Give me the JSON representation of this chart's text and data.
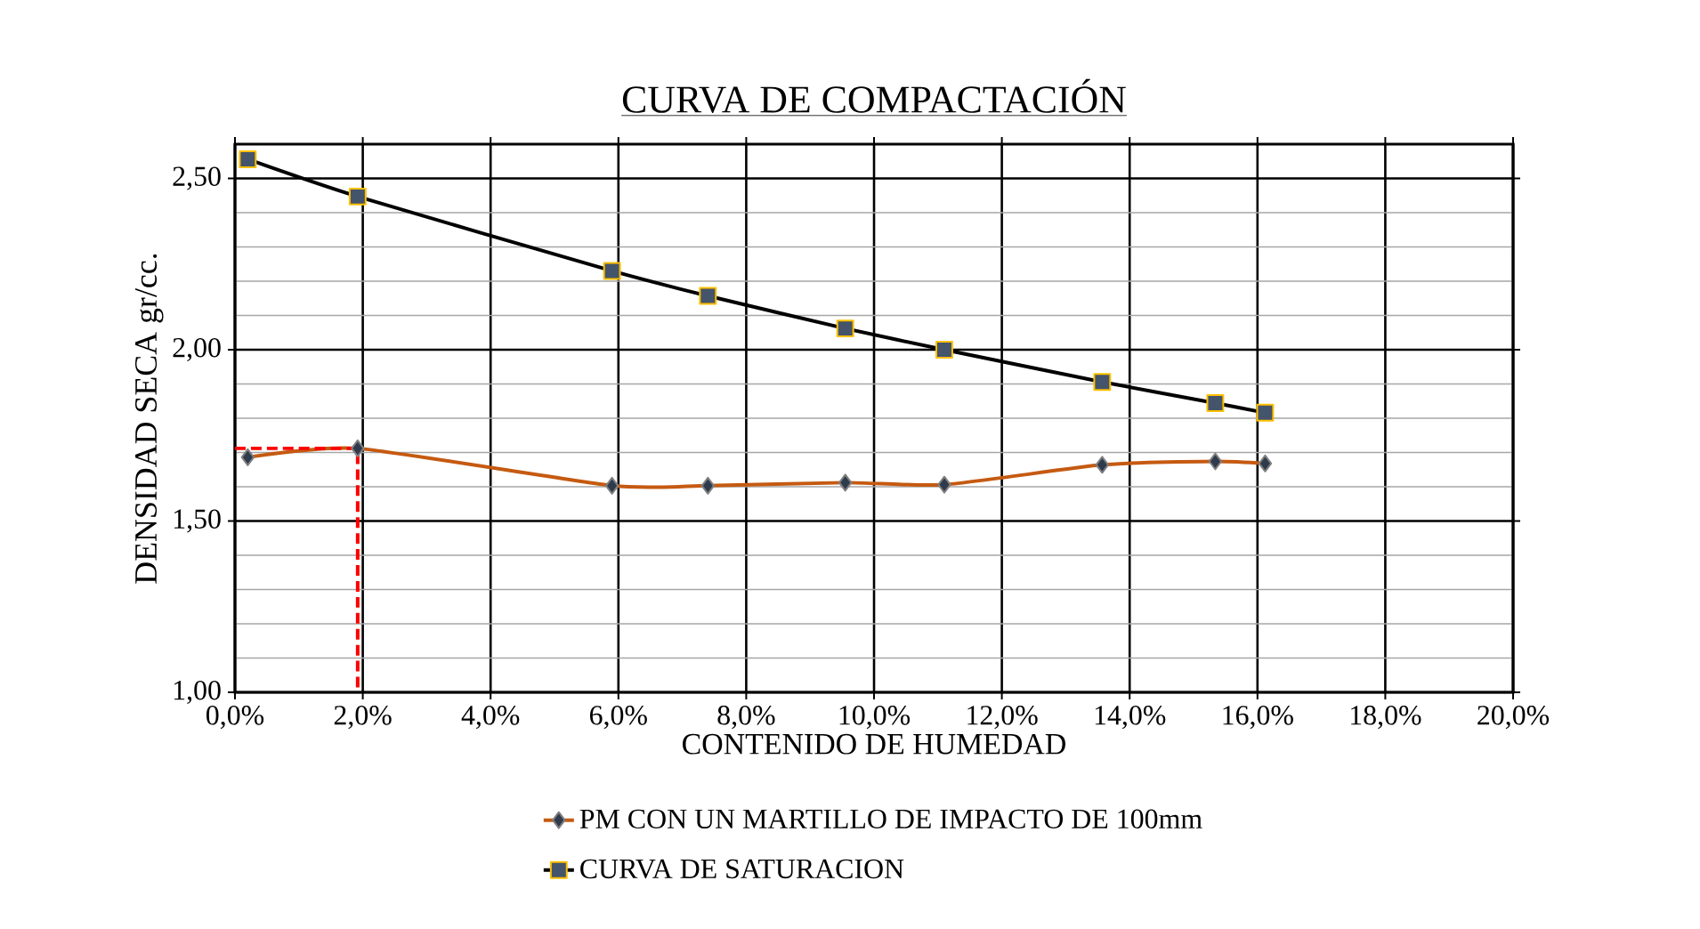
{
  "chart_data": {
    "type": "line",
    "title": "CURVA DE COMPACTACIÓN",
    "xlabel": "CONTENIDO DE HUMEDAD",
    "ylabel": "DENSIDAD SECA gr/cc.",
    "xlim": [
      0,
      20
    ],
    "ylim": [
      1,
      2.6
    ],
    "xticks": [
      {
        "value": 0,
        "label": "0,0%"
      },
      {
        "value": 2,
        "label": "2,0%"
      },
      {
        "value": 4,
        "label": "4,0%"
      },
      {
        "value": 6,
        "label": "6,0%"
      },
      {
        "value": 8,
        "label": "8,0%"
      },
      {
        "value": 10,
        "label": "10,0%"
      },
      {
        "value": 12,
        "label": "12,0%"
      },
      {
        "value": 14,
        "label": "14,0%"
      },
      {
        "value": 16,
        "label": "16,0%"
      },
      {
        "value": 18,
        "label": "18,0%"
      },
      {
        "value": 20,
        "label": "20,0%"
      }
    ],
    "yticks": [
      {
        "value": 1,
        "label": "1,00"
      },
      {
        "value": 1.5,
        "label": "1,50"
      },
      {
        "value": 2,
        "label": "2,00"
      },
      {
        "value": 2.5,
        "label": "2,50"
      }
    ],
    "grid": true,
    "legend": "bottom",
    "series": [
      {
        "name": "PM CON UN MARTILLO DE IMPACTO DE 100mm",
        "color": "#c55a11",
        "marker": "diamond",
        "x": [
          0.2,
          1.92,
          5.9,
          7.4,
          9.55,
          11.1,
          13.57,
          15.34,
          16.12
        ],
        "values": [
          1.686,
          1.712,
          1.603,
          1.603,
          1.612,
          1.606,
          1.664,
          1.674,
          1.668
        ]
      },
      {
        "name": "CURVA DE SATURACION",
        "color": "#000000",
        "marker": "square",
        "x": [
          0.2,
          1.92,
          5.9,
          7.4,
          9.55,
          11.1,
          13.57,
          15.34,
          16.12
        ],
        "values": [
          2.556,
          2.447,
          2.23,
          2.157,
          2.062,
          2.0,
          1.906,
          1.844,
          1.816
        ]
      },
      {
        "color": "#ff0000",
        "marker": "none",
        "line_style": "dashed",
        "x": [
          0,
          1.92,
          1.92
        ],
        "values": [
          1.712,
          1.712,
          1.0
        ]
      }
    ]
  }
}
